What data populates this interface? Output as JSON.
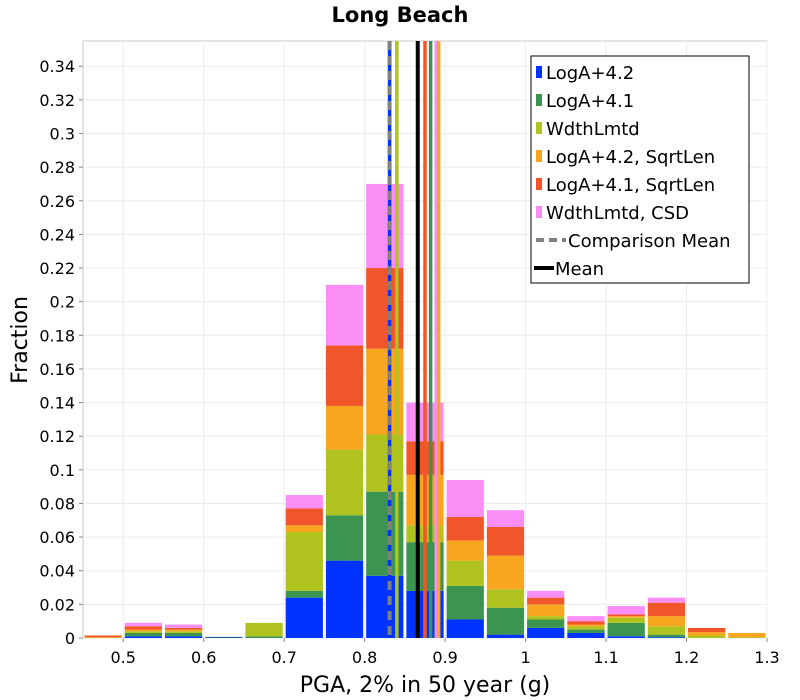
{
  "chart_data": {
    "type": "bar",
    "stacked": true,
    "title": "Long Beach",
    "xlabel": "PGA, 2% in 50 year (g)",
    "ylabel": "Fraction",
    "xlim": [
      0.45,
      1.3
    ],
    "ylim": [
      0,
      0.355
    ],
    "bin_width": 0.05,
    "grid": true,
    "legend_position": "top-right",
    "x_ticks": [
      0.5,
      0.6,
      0.7,
      0.8,
      0.9,
      1.0,
      1.1,
      1.2,
      1.3
    ],
    "x_tick_labels": [
      "0.5",
      "0.6",
      "0.7",
      "0.8",
      "0.9",
      "1",
      "1.1",
      "1.2",
      "1.3"
    ],
    "y_ticks": [
      0,
      0.02,
      0.04,
      0.06,
      0.08,
      0.1,
      0.12,
      0.14,
      0.16,
      0.18,
      0.2,
      0.22,
      0.24,
      0.26,
      0.28,
      0.3,
      0.32,
      0.34
    ],
    "y_tick_labels": [
      "0",
      "0.02",
      "0.04",
      "0.06",
      "0.08",
      "0.1",
      "0.12",
      "0.14",
      "0.16",
      "0.18",
      "0.2",
      "0.22",
      "0.24",
      "0.26",
      "0.28",
      "0.3",
      "0.32",
      "0.34"
    ],
    "bin_centers": [
      0.475,
      0.525,
      0.575,
      0.625,
      0.675,
      0.725,
      0.775,
      0.825,
      0.875,
      0.925,
      0.975,
      1.025,
      1.075,
      1.125,
      1.175,
      1.225,
      1.275
    ],
    "series": [
      {
        "name": "LogA+4.2",
        "color": "#0033ff",
        "values": [
          0,
          0.001,
          0.001,
          0.0003,
          0,
          0.024,
          0.046,
          0.037,
          0.028,
          0.011,
          0.002,
          0.006,
          0.003,
          0.001,
          0.0005,
          0,
          0
        ]
      },
      {
        "name": "LogA+4.1",
        "color": "#3b9450",
        "values": [
          0,
          0.002,
          0.002,
          0.0004,
          0.001,
          0.004,
          0.027,
          0.05,
          0.029,
          0.02,
          0.016,
          0.005,
          0.002,
          0.008,
          0.0015,
          0,
          0
        ]
      },
      {
        "name": "WdthLmtd",
        "color": "#afc21d",
        "values": [
          0,
          0.001,
          0.001,
          0,
          0.008,
          0.035,
          0.039,
          0.034,
          0.01,
          0.015,
          0.011,
          0.002,
          0.002,
          0.003,
          0.005,
          0.0015,
          0.0005
        ]
      },
      {
        "name": "LogA+4.2, SqrtLen",
        "color": "#f8a51f",
        "values": [
          0.0005,
          0.001,
          0.001,
          0,
          0,
          0.004,
          0.026,
          0.051,
          0.03,
          0.012,
          0.02,
          0.007,
          0.001,
          0.001,
          0.006,
          0.002,
          0.0025
        ]
      },
      {
        "name": "LogA+4.1, SqrtLen",
        "color": "#f0562a",
        "values": [
          0.001,
          0.002,
          0.001,
          0,
          0,
          0.01,
          0.036,
          0.048,
          0.02,
          0.014,
          0.017,
          0.004,
          0.002,
          0.001,
          0.008,
          0.0025,
          0
        ]
      },
      {
        "name": "WdthLmtd, CSD",
        "color": "#fa8ef6",
        "values": [
          0,
          0.002,
          0.002,
          0,
          0,
          0.008,
          0.036,
          0.05,
          0.023,
          0.022,
          0.01,
          0.004,
          0.003,
          0.005,
          0.003,
          0,
          0
        ]
      }
    ],
    "vertical_lines": [
      {
        "name": "LogA+4.2 mean",
        "x": 0.831,
        "color": "#0033ff",
        "style": "solid"
      },
      {
        "name": "WdthLmtd mean",
        "x": 0.84,
        "color": "#afc21d",
        "style": "solid"
      },
      {
        "name": "LogA+4.1, SqrtLen mean",
        "x": 0.875,
        "color": "#f0562a",
        "style": "solid"
      },
      {
        "name": "LogA+4.1 mean",
        "x": 0.882,
        "color": "#3b9450",
        "style": "solid"
      },
      {
        "name": "WdthLmtd, CSD mean",
        "x": 0.889,
        "color": "#fa8ef6",
        "style": "solid"
      },
      {
        "name": "LogA+4.2, SqrtLen mean",
        "x": 0.892,
        "color": "#f8a51f",
        "style": "solid"
      },
      {
        "name": "Comparison Mean",
        "x": 0.831,
        "color": "#808080",
        "style": "dashed"
      },
      {
        "name": "Mean",
        "x": 0.866,
        "color": "#000000",
        "style": "solid"
      }
    ],
    "legend": [
      {
        "label": "LogA+4.2",
        "color": "#0033ff",
        "kind": "box"
      },
      {
        "label": "LogA+4.1",
        "color": "#3b9450",
        "kind": "box"
      },
      {
        "label": "WdthLmtd",
        "color": "#afc21d",
        "kind": "box"
      },
      {
        "label": "LogA+4.2, SqrtLen",
        "color": "#f8a51f",
        "kind": "box"
      },
      {
        "label": "LogA+4.1, SqrtLen",
        "color": "#f0562a",
        "kind": "box"
      },
      {
        "label": "WdthLmtd, CSD",
        "color": "#fa8ef6",
        "kind": "box"
      },
      {
        "label": "Comparison Mean",
        "color": "#808080",
        "kind": "dashed"
      },
      {
        "label": "Mean",
        "color": "#000000",
        "kind": "line"
      }
    ]
  }
}
